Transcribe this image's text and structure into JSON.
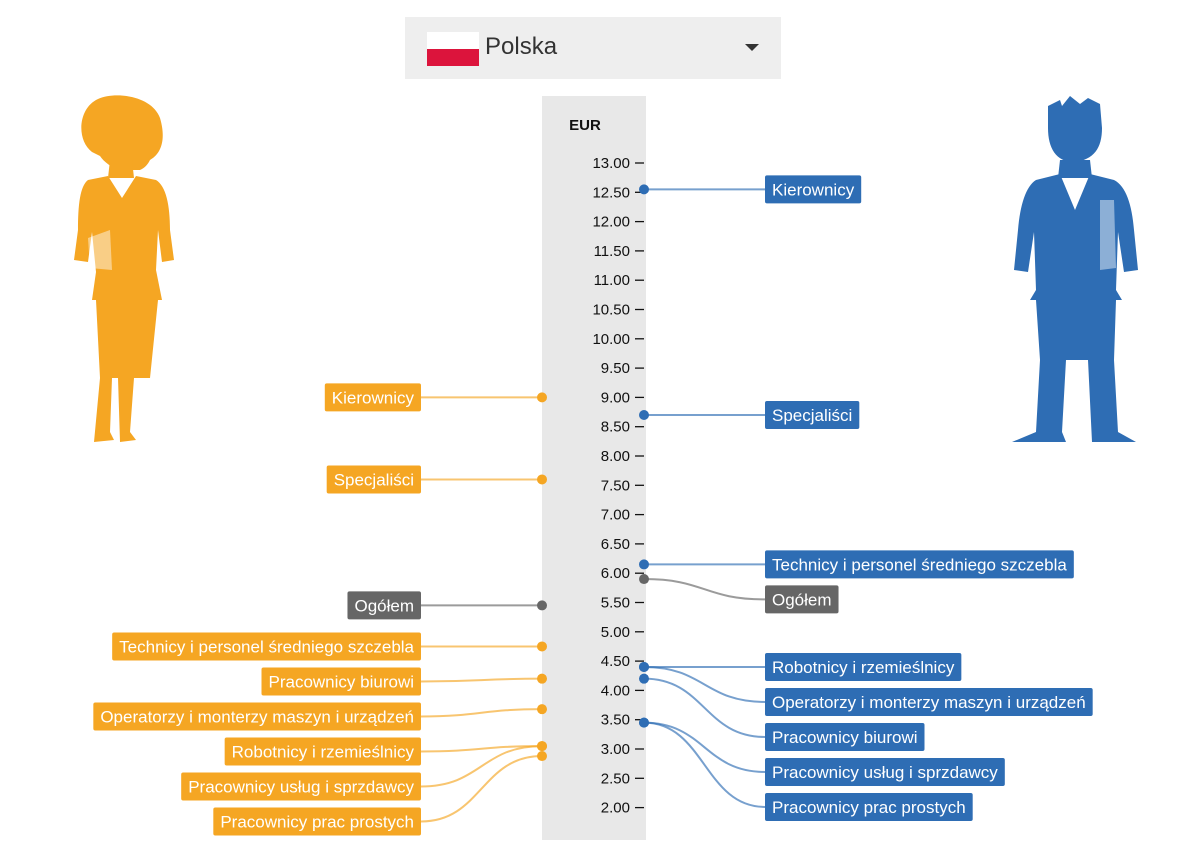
{
  "selector": {
    "country": "Polska",
    "flag_icon": "poland-flag-icon"
  },
  "colors": {
    "women": "#f5a623",
    "men": "#2e6db4",
    "total": "#666666",
    "axis_band": "#e8e8e8"
  },
  "chart_data": {
    "type": "dot-label",
    "unit": "EUR",
    "ylim": [
      1.9,
      13.4
    ],
    "ticks": [
      "13.00",
      "12.50",
      "12.00",
      "11.50",
      "11.00",
      "10.50",
      "10.00",
      "9.50",
      "9.00",
      "8.50",
      "8.00",
      "7.50",
      "7.00",
      "6.50",
      "6.00",
      "5.50",
      "5.00",
      "4.50",
      "4.00",
      "3.50",
      "3.00",
      "2.50",
      "2.00"
    ],
    "series": [
      {
        "side": "left",
        "color": "women",
        "points": [
          {
            "label": "Kierownicy",
            "value": 9.0,
            "bold": false
          },
          {
            "label": "Specjaliści",
            "value": 7.6,
            "bold": false
          },
          {
            "label": "Ogółem",
            "value": 5.45,
            "total": true
          },
          {
            "label": "Technicy i personel średniego szczebla",
            "value": 4.75
          },
          {
            "label": "Pracownicy biurowi",
            "value": 4.2
          },
          {
            "label": "Operatorzy i monterzy maszyn i urządzeń",
            "value": 3.68
          },
          {
            "label": "Robotnicy i rzemieślnicy",
            "value": 3.05
          },
          {
            "label": "Pracownicy usług i sprzdawcy",
            "value": 3.05
          },
          {
            "label": "Pracownicy prac prostych",
            "value": 2.88
          }
        ]
      },
      {
        "side": "right",
        "color": "men",
        "points": [
          {
            "label": "Kierownicy",
            "value": 12.55
          },
          {
            "label": "Specjaliści",
            "value": 8.7
          },
          {
            "label": "Technicy i personel średniego szczebla",
            "value": 6.15
          },
          {
            "label": "Ogółem",
            "value": 5.9,
            "total": true
          },
          {
            "label": "Robotnicy i rzemieślnicy",
            "value": 4.4
          },
          {
            "label": "Operatorzy i monterzy maszyn i urządzeń",
            "value": 4.4
          },
          {
            "label": "Pracownicy biurowi",
            "value": 4.2
          },
          {
            "label": "Pracownicy usług i sprzdawcy",
            "value": 3.45
          },
          {
            "label": "Pracownicy prac prostych",
            "value": 3.45
          }
        ]
      }
    ]
  }
}
